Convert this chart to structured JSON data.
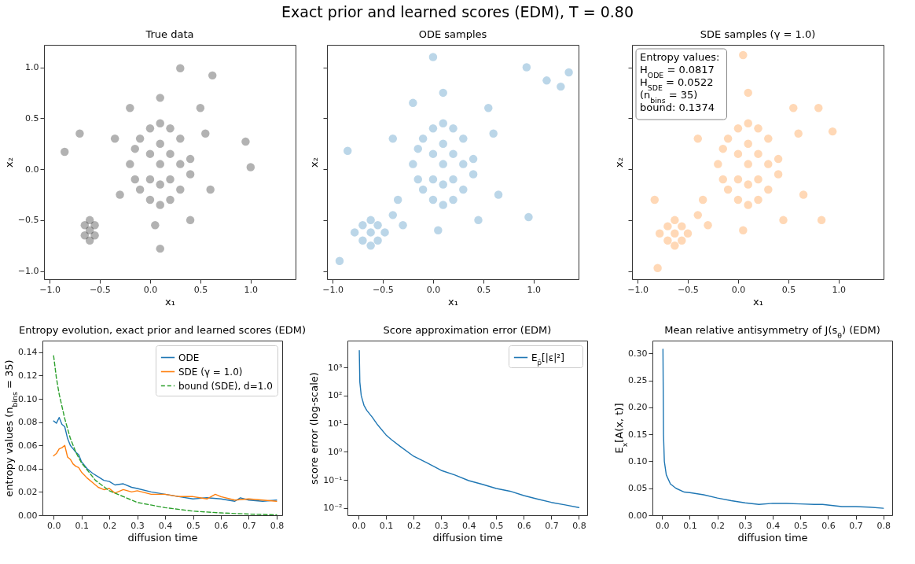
{
  "chart_data": [
    {
      "type": "other",
      "title": "Exact prior and learned scores (EDM), T = 0.80"
    },
    {
      "type": "scatter",
      "title": "True data",
      "xlabel": "x₁",
      "ylabel": "x₂",
      "marker": "circle",
      "xlim": [
        -1.055,
        1.447
      ],
      "ylim": [
        -1.08,
        1.22
      ],
      "xticks": [
        {
          "value": -1,
          "label": "−1.0"
        },
        {
          "value": -0.5,
          "label": "−0.5"
        },
        {
          "value": 0,
          "label": "0.0"
        },
        0.5,
        {
          "value": 1,
          "label": "1.0"
        }
      ],
      "yticks": [
        {
          "value": -1,
          "label": "−1.0"
        },
        {
          "value": -0.5,
          "label": "−0.5"
        },
        {
          "value": 0,
          "label": "0.0"
        },
        0.5,
        {
          "value": 1,
          "label": "1.0"
        }
      ],
      "series": [
        {
          "color": "#000000",
          "x": [
            -0.2,
            -0.1,
            -0.1,
            0,
            0,
            0,
            0,
            0.1,
            0.1,
            0.1,
            0.1,
            0.1,
            0.2,
            0.2,
            0.2,
            0.2,
            0.3,
            0.3,
            0.3,
            0.4,
            -0.15,
            -0.15,
            0.4,
            -0.35,
            -0.3,
            0.55,
            0.6,
            0.1,
            0.05,
            0.4,
            -0.2,
            0.5,
            -0.85,
            1.0,
            0.3,
            0.62,
            0.1,
            0.95,
            -0.7,
            -0.6,
            -0.65,
            -0.55,
            -0.55,
            -0.65,
            -0.6,
            -0.6
          ],
          "values": [
            0.05,
            0.3,
            -0.2,
            0.4,
            0.15,
            -0.1,
            -0.3,
            0.45,
            0.25,
            0.05,
            -0.15,
            -0.35,
            0.4,
            0.15,
            -0.1,
            -0.3,
            0.3,
            0.05,
            -0.2,
            0.1,
            0.2,
            -0.1,
            -0.05,
            0.3,
            -0.25,
            0.35,
            -0.2,
            0.7,
            -0.55,
            -0.5,
            0.6,
            0.6,
            0.17,
            0.02,
            0.99,
            0.92,
            -0.78,
            0.27,
            0.35,
            -0.6,
            -0.55,
            -0.65,
            -0.55,
            -0.65,
            -0.7,
            -0.5
          ]
        }
      ]
    },
    {
      "type": "scatter",
      "title": "ODE samples",
      "xlabel": "x₁",
      "ylabel": "x₂",
      "marker": "circle",
      "tick_labels": "x",
      "xlim": [
        -1.055,
        1.447
      ],
      "ylim": [
        -1.08,
        1.22
      ],
      "xticks": [
        {
          "value": -1,
          "label": "−1.0"
        },
        {
          "value": -0.5,
          "label": "−0.5"
        },
        {
          "value": 0,
          "label": "0.0"
        },
        0.5,
        {
          "value": 1,
          "label": "1.0"
        }
      ],
      "yticks": [
        -1,
        -0.5,
        0,
        0.5,
        1
      ],
      "series": [
        {
          "color": "#1f77b4",
          "x": [
            -0.2,
            -0.1,
            -0.1,
            0,
            0,
            0,
            0,
            0.1,
            0.1,
            0.1,
            0.1,
            0.1,
            0.2,
            0.2,
            0.2,
            0.2,
            0.3,
            0.3,
            0.3,
            0.4,
            -0.15,
            -0.15,
            0.4,
            -0.4,
            -0.35,
            0.6,
            0.65,
            0.1,
            0.05,
            0.45,
            -0.2,
            0.55,
            -0.4,
            -0.3,
            -0.62,
            -0.7,
            -0.55,
            -0.55,
            -0.7,
            -0.62,
            -0.62,
            -0.78,
            -0.48,
            1.35,
            1.13,
            1.27,
            0.93,
            -0.93,
            -0.85,
            0.95,
            0.0
          ],
          "values": [
            0.05,
            0.3,
            -0.2,
            0.4,
            0.15,
            -0.1,
            -0.3,
            0.45,
            0.25,
            0.05,
            -0.15,
            -0.35,
            0.4,
            0.15,
            -0.1,
            -0.3,
            0.3,
            0.05,
            -0.2,
            0.1,
            0.2,
            -0.1,
            -0.05,
            0.3,
            -0.3,
            0.35,
            -0.25,
            0.75,
            -0.6,
            -0.5,
            0.65,
            0.6,
            -0.45,
            -0.55,
            -0.62,
            -0.55,
            -0.7,
            -0.55,
            -0.7,
            -0.75,
            -0.5,
            -0.62,
            -0.62,
            0.95,
            0.87,
            0.81,
            1.0,
            -0.9,
            0.18,
            -0.47,
            1.1
          ]
        }
      ]
    },
    {
      "type": "scatter",
      "title": "SDE samples (γ = 1.0)",
      "xlabel": "x₁",
      "ylabel": "x₂",
      "marker": "circle",
      "tick_labels": "x",
      "xlim": [
        -1.055,
        1.447
      ],
      "ylim": [
        -1.08,
        1.22
      ],
      "xticks": [
        {
          "value": -1,
          "label": "−1.0"
        },
        {
          "value": -0.5,
          "label": "−0.5"
        },
        {
          "value": 0,
          "label": "0.0"
        },
        0.5,
        {
          "value": 1,
          "label": "1.0"
        }
      ],
      "yticks": [
        -1,
        -0.5,
        0,
        0.5,
        1
      ],
      "annotations": [
        "Entropy values:",
        "H$_{ODE}$ = 0.0817",
        "H$_{SDE}$ = 0.0522",
        "(n$_{bins}$ = 35)",
        "bound: 0.1374"
      ],
      "series": [
        {
          "color": "#ff7f0e",
          "x": [
            -0.2,
            -0.1,
            -0.1,
            0,
            0,
            0,
            0,
            0.1,
            0.1,
            0.1,
            0.1,
            0.1,
            0.2,
            0.2,
            0.2,
            0.2,
            0.3,
            0.3,
            0.3,
            0.4,
            -0.15,
            -0.15,
            0.4,
            -0.4,
            -0.35,
            0.6,
            0.65,
            0.1,
            0.05,
            0.45,
            0.55,
            -0.4,
            -0.3,
            -0.63,
            -0.7,
            -0.56,
            -0.56,
            -0.7,
            -0.63,
            -0.63,
            -0.78,
            -0.5,
            0.05,
            -0.8,
            0.94,
            0.83,
            -0.83,
            0.8
          ],
          "values": [
            0.05,
            0.3,
            -0.2,
            0.4,
            0.15,
            -0.1,
            -0.3,
            0.45,
            0.25,
            0.05,
            -0.15,
            -0.35,
            0.4,
            0.15,
            -0.1,
            -0.3,
            0.3,
            0.05,
            -0.2,
            0.1,
            0.2,
            -0.1,
            -0.05,
            0.3,
            -0.3,
            0.35,
            -0.25,
            0.75,
            -0.6,
            -0.5,
            0.6,
            -0.45,
            -0.55,
            -0.63,
            -0.56,
            -0.7,
            -0.56,
            -0.7,
            -0.75,
            -0.5,
            -0.63,
            -0.63,
            1.12,
            -0.97,
            0.37,
            -0.5,
            -0.3,
            0.6
          ]
        }
      ]
    },
    {
      "type": "line",
      "title": "Entropy evolution, exact prior and learned scores (EDM)",
      "xlabel": "diffusion time",
      "ylabel": "entropy values (n$_{bins}$ = 35)",
      "legend": "top right",
      "xlim": [
        -0.04,
        0.82
      ],
      "ylim": [
        0,
        0.15
      ],
      "xticks": [
        {
          "value": 0,
          "label": "0.0"
        },
        0.1,
        0.2,
        0.3,
        0.4,
        0.5,
        0.6,
        0.7,
        0.8
      ],
      "yticks": [
        {
          "value": 0,
          "label": "0.00"
        },
        0.02,
        0.04,
        0.06,
        0.08,
        {
          "value": 0.1,
          "label": "0.10"
        },
        0.12,
        0.14
      ],
      "series": [
        {
          "name": "ODE",
          "color": "#1f77b4",
          "x": [
            0,
            0.01,
            0.02,
            0.03,
            0.04,
            0.05,
            0.06,
            0.07,
            0.08,
            0.09,
            0.1,
            0.12,
            0.14,
            0.16,
            0.18,
            0.2,
            0.22,
            0.25,
            0.28,
            0.3,
            0.35,
            0.4,
            0.45,
            0.5,
            0.55,
            0.6,
            0.65,
            0.67,
            0.7,
            0.75,
            0.8
          ],
          "values": [
            0.081,
            0.079,
            0.084,
            0.078,
            0.076,
            0.066,
            0.06,
            0.057,
            0.054,
            0.052,
            0.046,
            0.04,
            0.036,
            0.033,
            0.03,
            0.029,
            0.026,
            0.027,
            0.024,
            0.023,
            0.02,
            0.018,
            0.016,
            0.014,
            0.015,
            0.014,
            0.012,
            0.015,
            0.013,
            0.012,
            0.013
          ]
        },
        {
          "name": "SDE (γ = 1.0)",
          "color": "#ff7f0e",
          "x": [
            0,
            0.01,
            0.02,
            0.03,
            0.04,
            0.05,
            0.06,
            0.07,
            0.08,
            0.09,
            0.1,
            0.12,
            0.14,
            0.16,
            0.18,
            0.2,
            0.22,
            0.25,
            0.28,
            0.3,
            0.35,
            0.4,
            0.45,
            0.5,
            0.55,
            0.58,
            0.6,
            0.65,
            0.7,
            0.75,
            0.8
          ],
          "values": [
            0.051,
            0.053,
            0.057,
            0.058,
            0.06,
            0.05,
            0.048,
            0.044,
            0.042,
            0.041,
            0.037,
            0.032,
            0.028,
            0.024,
            0.022,
            0.023,
            0.019,
            0.022,
            0.02,
            0.021,
            0.018,
            0.018,
            0.016,
            0.016,
            0.014,
            0.018,
            0.016,
            0.013,
            0.014,
            0.013,
            0.012
          ]
        },
        {
          "name": "bound (SDE), d=1.0",
          "color": "#2ca02c",
          "line_style": "dashed",
          "x": [
            0,
            0.01,
            0.02,
            0.04,
            0.06,
            0.08,
            0.1,
            0.15,
            0.2,
            0.3,
            0.4,
            0.5,
            0.6,
            0.7,
            0.8
          ],
          "values": [
            0.137,
            0.118,
            0.104,
            0.083,
            0.066,
            0.054,
            0.045,
            0.03,
            0.021,
            0.011,
            0.0065,
            0.0035,
            0.002,
            0.001,
            0.0003
          ]
        }
      ]
    },
    {
      "type": "line",
      "title": "Score approximation error (EDM)",
      "xlabel": "diffusion time",
      "ylabel": "score error (log-scale)",
      "legend": "top right",
      "log": "y",
      "xlim": [
        -0.04,
        0.83
      ],
      "ylim": [
        0.0056,
        9000
      ],
      "xticks": [
        {
          "value": 0,
          "label": "0.0"
        },
        0.1,
        0.2,
        0.3,
        0.4,
        0.5,
        0.6,
        0.7,
        0.8
      ],
      "yticks": [
        {
          "value": 0.01,
          "label": "10⁻²"
        },
        {
          "value": 0.1,
          "label": "10⁻¹"
        },
        {
          "value": 1,
          "label": "10⁰"
        },
        {
          "value": 10,
          "label": "10¹"
        },
        {
          "value": 100,
          "label": "10²"
        },
        {
          "value": 1000,
          "label": "10³"
        }
      ],
      "series": [
        {
          "name": "E$_{p̂}$[|ε|²]",
          "color": "#1f77b4",
          "x": [
            0.003,
            0.005,
            0.01,
            0.02,
            0.03,
            0.05,
            0.07,
            0.1,
            0.12,
            0.15,
            0.2,
            0.25,
            0.3,
            0.35,
            0.4,
            0.45,
            0.5,
            0.55,
            0.6,
            0.65,
            0.7,
            0.75,
            0.8
          ],
          "values": [
            4000,
            300,
            100,
            45,
            30,
            17,
            9,
            4,
            2.7,
            1.6,
            0.7,
            0.4,
            0.22,
            0.15,
            0.095,
            0.07,
            0.05,
            0.04,
            0.028,
            0.021,
            0.016,
            0.013,
            0.0105
          ]
        }
      ]
    },
    {
      "type": "line",
      "title": "Mean relative antisymmetry of J(s$_{θ}$) (EDM)",
      "xlabel": "diffusion time",
      "ylabel": "E$_{x}$[A(x, t)]",
      "xlim": [
        -0.035,
        0.832
      ],
      "ylim": [
        0,
        0.324
      ],
      "xticks": [
        {
          "value": 0,
          "label": "0.0"
        },
        0.1,
        0.2,
        0.3,
        0.4,
        0.5,
        0.6,
        0.7,
        0.8
      ],
      "yticks": [
        {
          "value": 0,
          "label": "0.00"
        },
        0.05,
        {
          "value": 0.1,
          "label": "0.10"
        },
        0.15,
        {
          "value": 0.2,
          "label": "0.20"
        },
        0.25,
        {
          "value": 0.3,
          "label": "0.30"
        }
      ],
      "series": [
        {
          "color": "#1f77b4",
          "x": [
            0.003,
            0.005,
            0.008,
            0.015,
            0.03,
            0.05,
            0.08,
            0.1,
            0.15,
            0.2,
            0.25,
            0.3,
            0.35,
            0.4,
            0.45,
            0.5,
            0.55,
            0.58,
            0.65,
            0.7,
            0.75,
            0.8
          ],
          "values": [
            0.308,
            0.15,
            0.1,
            0.075,
            0.058,
            0.05,
            0.043,
            0.042,
            0.038,
            0.032,
            0.027,
            0.023,
            0.02,
            0.022,
            0.022,
            0.021,
            0.02,
            0.02,
            0.016,
            0.016,
            0.015,
            0.013
          ]
        }
      ]
    }
  ]
}
